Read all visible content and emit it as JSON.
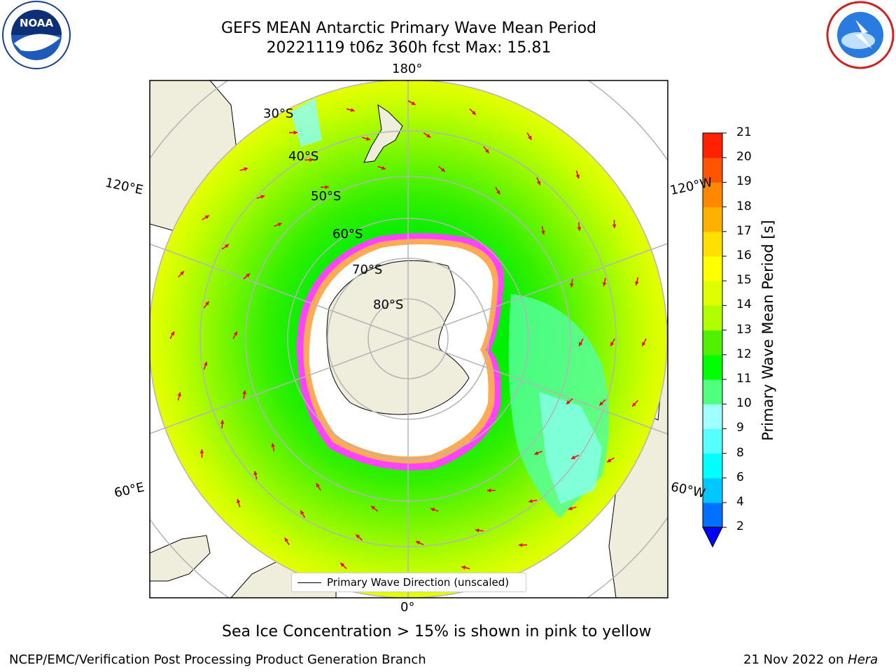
{
  "header": {
    "title_line1": "GEFS MEAN Antarctic Primary Wave Mean Period",
    "title_line2": "20221119 t06z 360h fcst   Max: 15.81"
  },
  "logos": {
    "left": {
      "name": "noaa-logo",
      "text": "NOAA"
    },
    "right": {
      "name": "nws-logo",
      "ring_text": "NATIONAL WEATHER SERVICE"
    }
  },
  "map": {
    "projection": "south-polar-stereographic",
    "longitude_labels": {
      "top": "180°",
      "bottom": "0°",
      "upper_left": "120°E",
      "upper_right": "120°W",
      "lower_left": "60°E",
      "lower_right": "60°W"
    },
    "latitude_labels": [
      "30°S",
      "40°S",
      "50°S",
      "60°S",
      "70°S",
      "80°S"
    ],
    "legend_label": "Primary Wave Direction (unscaled)",
    "colors": {
      "land": "#efeddc",
      "ice": "#ffffff",
      "ice_edge": [
        "#ff00ff",
        "#ff88ff",
        "#ffaa44"
      ],
      "arrows": "#ff0000",
      "grid": "#b4b4b4"
    }
  },
  "colorbar": {
    "label": "Primary Wave Mean Period [s]",
    "ticks": [
      "2",
      "4",
      "6",
      "8",
      "9",
      "10",
      "11",
      "12",
      "13",
      "14",
      "15",
      "16",
      "17",
      "18",
      "19",
      "20",
      "21"
    ],
    "colors": [
      "#0070ff",
      "#00c8ff",
      "#00ffff",
      "#55ffff",
      "#a0ffff",
      "#50ff80",
      "#00ff00",
      "#50f000",
      "#b0ff00",
      "#ddff00",
      "#ffff00",
      "#ffe000",
      "#ffb000",
      "#ff8800",
      "#ff5500",
      "#ff2200"
    ],
    "extend_low_color": "#0000ff"
  },
  "footer": {
    "note": "Sea Ice Concentration > 15% is shown in pink to yellow",
    "credit": "NCEP/EMC/Verification Post Processing Product Generation Branch",
    "date": "21 Nov 2022 on ",
    "machine": "Hera"
  }
}
